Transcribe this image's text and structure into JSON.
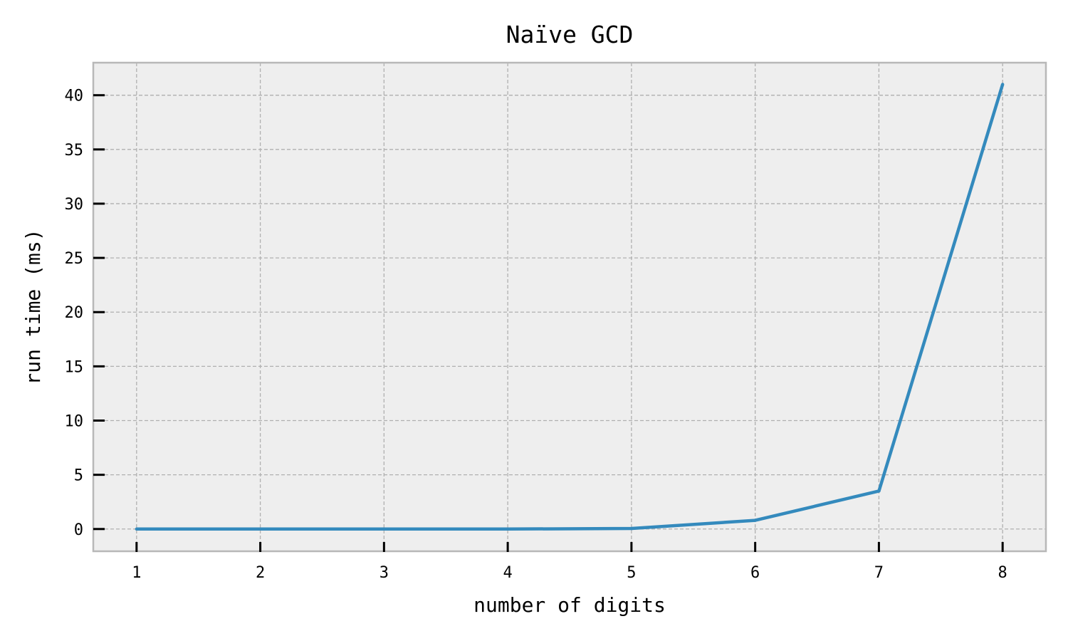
{
  "chart_data": {
    "type": "line",
    "title": "Naïve GCD",
    "xlabel": "number of digits",
    "ylabel": "run time (ms)",
    "x": [
      1,
      2,
      3,
      4,
      5,
      6,
      7,
      8
    ],
    "series": [
      {
        "values": [
          0.0,
          0.0,
          0.0,
          0.0,
          0.05,
          0.8,
          3.5,
          41.0
        ],
        "color": "#348abd"
      }
    ],
    "xticks": [
      "1",
      "2",
      "3",
      "4",
      "5",
      "6",
      "7",
      "8"
    ],
    "yticks": [
      "0",
      "5",
      "10",
      "15",
      "20",
      "25",
      "30",
      "35",
      "40"
    ],
    "xlim": [
      0.65,
      8.35
    ],
    "ylim": [
      -2.05,
      43.0
    ],
    "grid": true,
    "background": "#eeeeee"
  }
}
